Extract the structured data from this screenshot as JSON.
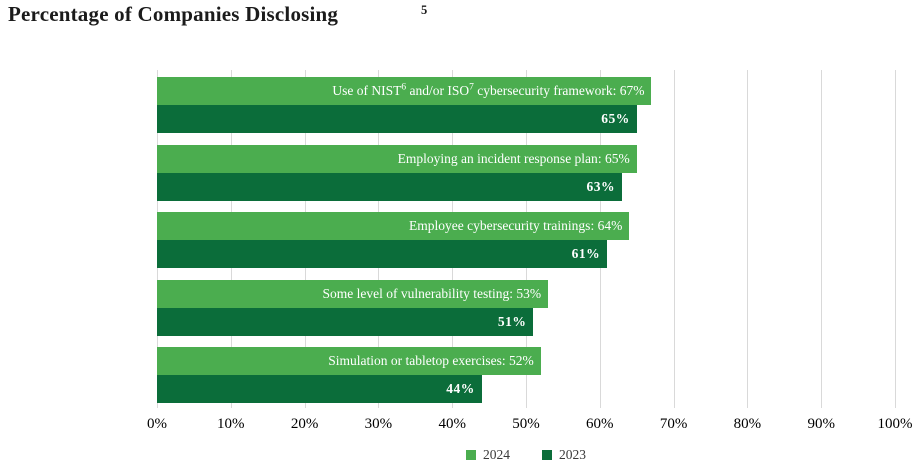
{
  "chart_data": {
    "type": "bar",
    "orientation": "horizontal",
    "title": "Percentage of Companies Disclosing",
    "title_footnote_superscript": "5",
    "categories": [
      {
        "label": "Use of NIST and/or ISO cybersecurity framework",
        "parts": [
          {
            "text": "Use of NIST"
          },
          {
            "sup": "6"
          },
          {
            "text": " and/or ISO"
          },
          {
            "sup": "7"
          },
          {
            "text": " cybersecurity framework"
          }
        ]
      },
      {
        "label": "Employing an incident response plan"
      },
      {
        "label": "Employee cybersecurity trainings"
      },
      {
        "label": "Some level of vulnerability testing"
      },
      {
        "label": "Simulation or tabletop exercises"
      }
    ],
    "series": [
      {
        "name": "2024",
        "color": "#4bad4f",
        "values": [
          67,
          65,
          64,
          53,
          52
        ]
      },
      {
        "name": "2023",
        "color": "#0b6d3a",
        "values": [
          65,
          63,
          61,
          51,
          44
        ]
      }
    ],
    "bar_label_format": {
      "2024": "{category}: {value}%",
      "2023": "{value}%"
    },
    "x_ticks": [
      "0%",
      "10%",
      "20%",
      "30%",
      "40%",
      "50%",
      "60%",
      "70%",
      "80%",
      "90%",
      "100%"
    ],
    "xlim": [
      0,
      100
    ],
    "grid": "vertical",
    "gridline_color": "#d9d9d9",
    "legend_position": "bottom-center"
  }
}
